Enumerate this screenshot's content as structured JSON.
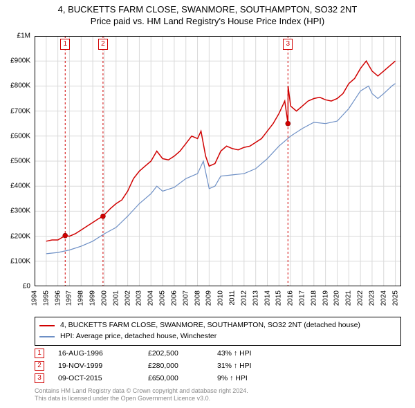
{
  "title_line1": "4, BUCKETTS FARM CLOSE, SWANMORE, SOUTHAMPTON, SO32 2NT",
  "title_line2": "Price paid vs. HM Land Registry's House Price Index (HPI)",
  "chart": {
    "type": "line",
    "background_color": "#ffffff",
    "grid_color": "#d9d9d9",
    "axis_color": "#000000",
    "tick_fontsize": 10,
    "title_fontsize": 13,
    "x_years": [
      1994,
      1995,
      1996,
      1997,
      1998,
      1999,
      2000,
      2001,
      2002,
      2003,
      2004,
      2005,
      2006,
      2007,
      2008,
      2009,
      2010,
      2011,
      2012,
      2013,
      2014,
      2015,
      2016,
      2017,
      2018,
      2019,
      2020,
      2021,
      2022,
      2023,
      2024,
      2025
    ],
    "xlim": [
      1994,
      2025.5
    ],
    "ylim": [
      0,
      1000000
    ],
    "ytick_step": 100000,
    "y_tick_labels": [
      "£0",
      "£100K",
      "£200K",
      "£300K",
      "£400K",
      "£500K",
      "£600K",
      "£700K",
      "£800K",
      "£900K",
      "£1M"
    ],
    "series": [
      {
        "name": "property",
        "label": "4, BUCKETTS FARM CLOSE, SWANMORE, SOUTHAMPTON, SO32 2NT (detached house)",
        "color": "#d00000",
        "line_width": 1.5,
        "data": [
          [
            1995.0,
            180000
          ],
          [
            1995.5,
            185000
          ],
          [
            1996.0,
            185000
          ],
          [
            1996.63,
            202500
          ],
          [
            1997.0,
            200000
          ],
          [
            1997.5,
            210000
          ],
          [
            1998.0,
            225000
          ],
          [
            1998.5,
            240000
          ],
          [
            1999.0,
            255000
          ],
          [
            1999.5,
            270000
          ],
          [
            1999.88,
            280000
          ],
          [
            2000.5,
            310000
          ],
          [
            2001.0,
            330000
          ],
          [
            2001.5,
            345000
          ],
          [
            2002.0,
            380000
          ],
          [
            2002.5,
            430000
          ],
          [
            2003.0,
            460000
          ],
          [
            2003.5,
            480000
          ],
          [
            2004.0,
            500000
          ],
          [
            2004.5,
            540000
          ],
          [
            2005.0,
            510000
          ],
          [
            2005.5,
            505000
          ],
          [
            2006.0,
            520000
          ],
          [
            2006.5,
            540000
          ],
          [
            2007.0,
            570000
          ],
          [
            2007.5,
            600000
          ],
          [
            2008.0,
            590000
          ],
          [
            2008.3,
            620000
          ],
          [
            2008.7,
            520000
          ],
          [
            2009.0,
            480000
          ],
          [
            2009.5,
            490000
          ],
          [
            2010.0,
            540000
          ],
          [
            2010.5,
            560000
          ],
          [
            2011.0,
            550000
          ],
          [
            2011.5,
            545000
          ],
          [
            2012.0,
            555000
          ],
          [
            2012.5,
            560000
          ],
          [
            2013.0,
            575000
          ],
          [
            2013.5,
            590000
          ],
          [
            2014.0,
            620000
          ],
          [
            2014.5,
            650000
          ],
          [
            2015.0,
            690000
          ],
          [
            2015.5,
            740000
          ],
          [
            2015.77,
            650000
          ],
          [
            2015.78,
            800000
          ],
          [
            2016.0,
            720000
          ],
          [
            2016.5,
            700000
          ],
          [
            2017.0,
            720000
          ],
          [
            2017.5,
            740000
          ],
          [
            2018.0,
            750000
          ],
          [
            2018.5,
            755000
          ],
          [
            2019.0,
            745000
          ],
          [
            2019.5,
            740000
          ],
          [
            2020.0,
            750000
          ],
          [
            2020.5,
            770000
          ],
          [
            2021.0,
            810000
          ],
          [
            2021.5,
            830000
          ],
          [
            2022.0,
            870000
          ],
          [
            2022.5,
            900000
          ],
          [
            2023.0,
            860000
          ],
          [
            2023.5,
            840000
          ],
          [
            2024.0,
            860000
          ],
          [
            2024.5,
            880000
          ],
          [
            2025.0,
            900000
          ]
        ]
      },
      {
        "name": "hpi",
        "label": "HPI: Average price, detached house, Winchester",
        "color": "#6d8fc5",
        "line_width": 1.2,
        "data": [
          [
            1995.0,
            130000
          ],
          [
            1996.0,
            135000
          ],
          [
            1997.0,
            145000
          ],
          [
            1998.0,
            160000
          ],
          [
            1999.0,
            180000
          ],
          [
            2000.0,
            210000
          ],
          [
            2001.0,
            235000
          ],
          [
            2002.0,
            280000
          ],
          [
            2003.0,
            330000
          ],
          [
            2004.0,
            370000
          ],
          [
            2004.5,
            400000
          ],
          [
            2005.0,
            380000
          ],
          [
            2006.0,
            395000
          ],
          [
            2007.0,
            430000
          ],
          [
            2008.0,
            450000
          ],
          [
            2008.5,
            500000
          ],
          [
            2009.0,
            390000
          ],
          [
            2009.5,
            400000
          ],
          [
            2010.0,
            440000
          ],
          [
            2011.0,
            445000
          ],
          [
            2012.0,
            450000
          ],
          [
            2013.0,
            470000
          ],
          [
            2014.0,
            510000
          ],
          [
            2015.0,
            560000
          ],
          [
            2016.0,
            600000
          ],
          [
            2017.0,
            630000
          ],
          [
            2018.0,
            655000
          ],
          [
            2019.0,
            650000
          ],
          [
            2020.0,
            660000
          ],
          [
            2021.0,
            710000
          ],
          [
            2022.0,
            780000
          ],
          [
            2022.7,
            800000
          ],
          [
            2023.0,
            770000
          ],
          [
            2023.5,
            750000
          ],
          [
            2024.0,
            770000
          ],
          [
            2024.7,
            800000
          ],
          [
            2025.0,
            810000
          ]
        ]
      }
    ],
    "event_markers": [
      {
        "n": "1",
        "year": 1996.63,
        "value": 202500
      },
      {
        "n": "2",
        "year": 1999.88,
        "value": 280000
      },
      {
        "n": "3",
        "year": 2015.77,
        "value": 650000
      }
    ],
    "marker_line_color": "#d00000",
    "marker_line_dash": "3,3",
    "marker_dot_fill": "#d00000",
    "marker_dot_radius": 3.5
  },
  "legend_items": [
    {
      "color": "#d00000",
      "label": "4, BUCKETTS FARM CLOSE, SWANMORE, SOUTHAMPTON, SO32 2NT (detached house)"
    },
    {
      "color": "#6d8fc5",
      "label": "HPI: Average price, detached house, Winchester"
    }
  ],
  "events": [
    {
      "n": "1",
      "date": "16-AUG-1996",
      "price": "£202,500",
      "pct": "43% ↑ HPI"
    },
    {
      "n": "2",
      "date": "19-NOV-1999",
      "price": "£280,000",
      "pct": "31% ↑ HPI"
    },
    {
      "n": "3",
      "date": "09-OCT-2015",
      "price": "£650,000",
      "pct": "9% ↑ HPI"
    }
  ],
  "footer_line1": "Contains HM Land Registry data © Crown copyright and database right 2024.",
  "footer_line2": "This data is licensed under the Open Government Licence v3.0."
}
